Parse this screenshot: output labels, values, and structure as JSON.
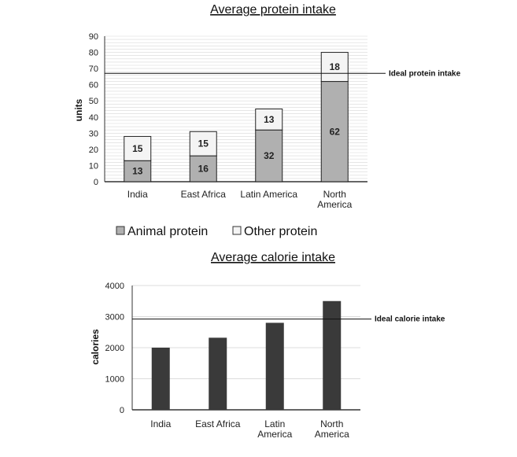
{
  "chart_data": [
    {
      "type": "bar",
      "stacked": true,
      "title": "Average protein intake",
      "ylabel": "units",
      "xlabel": "",
      "ylim": [
        0,
        90
      ],
      "yticks": [
        0,
        10,
        20,
        30,
        40,
        50,
        60,
        70,
        80,
        90
      ],
      "grid": true,
      "categories": [
        "India",
        "East Africa",
        "Latin America",
        [
          "North",
          "America"
        ]
      ],
      "series": [
        {
          "name": "Animal protein",
          "values": [
            13,
            16,
            32,
            62
          ],
          "color": "#b0b0b0"
        },
        {
          "name": "Other protein",
          "values": [
            15,
            15,
            13,
            18
          ],
          "color": "#f4f4f4"
        }
      ],
      "reference_line": {
        "label": "Ideal protein intake",
        "value": 67
      },
      "legend": {
        "placement": "bottom",
        "items": [
          "Animal protein",
          "Other protein"
        ]
      }
    },
    {
      "type": "bar",
      "title": "Average calorie intake",
      "ylabel": "calories",
      "xlabel": "",
      "ylim": [
        0,
        4000
      ],
      "yticks": [
        0,
        1000,
        2000,
        3000,
        4000
      ],
      "grid": true,
      "categories": [
        "India",
        "East Africa",
        [
          "Latin",
          "America"
        ],
        [
          "North",
          "America"
        ]
      ],
      "values": [
        2000,
        2320,
        2800,
        3500
      ],
      "color": "#3a3a3a",
      "reference_line": {
        "label": "Ideal calorie intake",
        "value": 2920
      }
    }
  ]
}
